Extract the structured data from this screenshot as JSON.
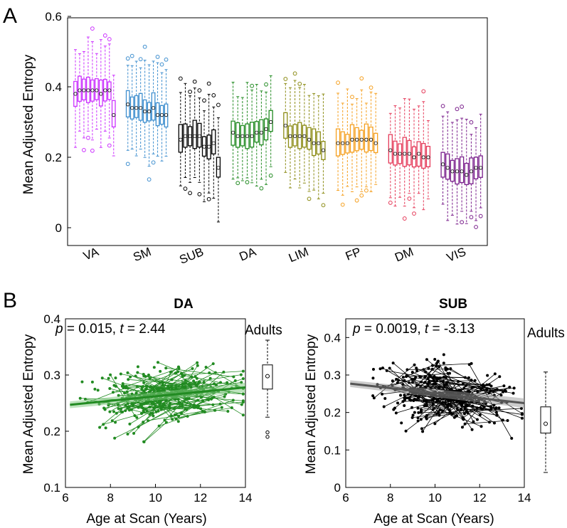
{
  "figure": {
    "panel_a_letter": "A",
    "panel_b_letter": "B"
  },
  "chart_data": [
    {
      "type": "boxplot",
      "panel": "A",
      "title": "",
      "xlabel": "",
      "ylabel": "Mean Adjusted Entropy",
      "ylim": [
        -0.05,
        0.6
      ],
      "yticks": [
        "0",
        "0.2",
        "0.4",
        "0.6"
      ],
      "groups": [
        {
          "name": "VA",
          "color": "#cc33ff",
          "medians": [
            0.38,
            0.39,
            0.39,
            0.39,
            0.39,
            0.39,
            0.38,
            0.39,
            0.39,
            0.32
          ]
        },
        {
          "name": "SM",
          "color": "#3f8fcf",
          "medians": [
            0.35,
            0.34,
            0.34,
            0.34,
            0.33,
            0.33,
            0.34,
            0.32,
            0.32,
            0.32
          ]
        },
        {
          "name": "SUB",
          "color": "#000000",
          "medians": [
            0.25,
            0.26,
            0.26,
            0.26,
            0.26,
            0.23,
            0.23,
            0.24,
            0.17
          ]
        },
        {
          "name": "DA",
          "color": "#228b22",
          "medians": [
            0.27,
            0.26,
            0.26,
            0.26,
            0.26,
            0.27,
            0.27,
            0.28,
            0.3
          ]
        },
        {
          "name": "LIM",
          "color": "#8c8c16",
          "medians": [
            0.29,
            0.26,
            0.26,
            0.26,
            0.26,
            0.25,
            0.24,
            0.24,
            0.22
          ]
        },
        {
          "name": "FP",
          "color": "#f5a020",
          "medians": [
            0.24,
            0.24,
            0.24,
            0.25,
            0.25,
            0.25,
            0.25,
            0.25,
            0.24
          ]
        },
        {
          "name": "DM",
          "color": "#e53b5a",
          "medians": [
            0.22,
            0.21,
            0.21,
            0.21,
            0.21,
            0.2,
            0.21,
            0.2,
            0.2
          ]
        },
        {
          "name": "VIS",
          "color": "#7a1f8c",
          "medians": [
            0.18,
            0.17,
            0.16,
            0.16,
            0.16,
            0.15,
            0.16,
            0.17,
            0.17
          ]
        }
      ]
    },
    {
      "type": "scatter",
      "panel": "B-left",
      "title": "DA",
      "xlabel": "Age at Scan (Years)",
      "ylabel": "Mean Adjusted Entropy",
      "xlim": [
        6,
        14
      ],
      "ylim": [
        0.1,
        0.4
      ],
      "xticks": [
        "6",
        "8",
        "10",
        "12",
        "14"
      ],
      "yticks": [
        "0.1",
        "0.2",
        "0.3",
        "0.4"
      ],
      "color": "#228b22",
      "p_label": "p",
      "p_value": "= 0.015,",
      "t_label": "t",
      "t_value": "= 2.44",
      "fit_line": {
        "x": [
          6.2,
          14
        ],
        "y": [
          0.247,
          0.278
        ]
      },
      "adults_label": "Adults",
      "adults_box": {
        "whisker_low": 0.225,
        "q1": 0.275,
        "median": 0.298,
        "q3": 0.318,
        "whisker_high": 0.362,
        "outliers": [
          0.198,
          0.19
        ]
      }
    },
    {
      "type": "scatter",
      "panel": "B-right",
      "title": "SUB",
      "xlabel": "Age at Scan (Years)",
      "ylabel": "Mean Adjusted Entropy",
      "xlim": [
        6,
        14
      ],
      "ylim": [
        0,
        0.45
      ],
      "xticks": [
        "6",
        "8",
        "10",
        "12",
        "14"
      ],
      "yticks": [
        "0",
        "0.1",
        "0.2",
        "0.3",
        "0.4"
      ],
      "color": "#000000",
      "p_label": "p",
      "p_value": "= 0.0019,",
      "t_label": "t",
      "t_value": "= -3.13",
      "fit_line": {
        "x": [
          6.2,
          14
        ],
        "y": [
          0.277,
          0.225
        ]
      },
      "adults_label": "Adults",
      "adults_box": {
        "whisker_low": 0.04,
        "q1": 0.145,
        "median": 0.17,
        "q3": 0.215,
        "whisker_high": 0.308,
        "outliers": []
      }
    }
  ]
}
